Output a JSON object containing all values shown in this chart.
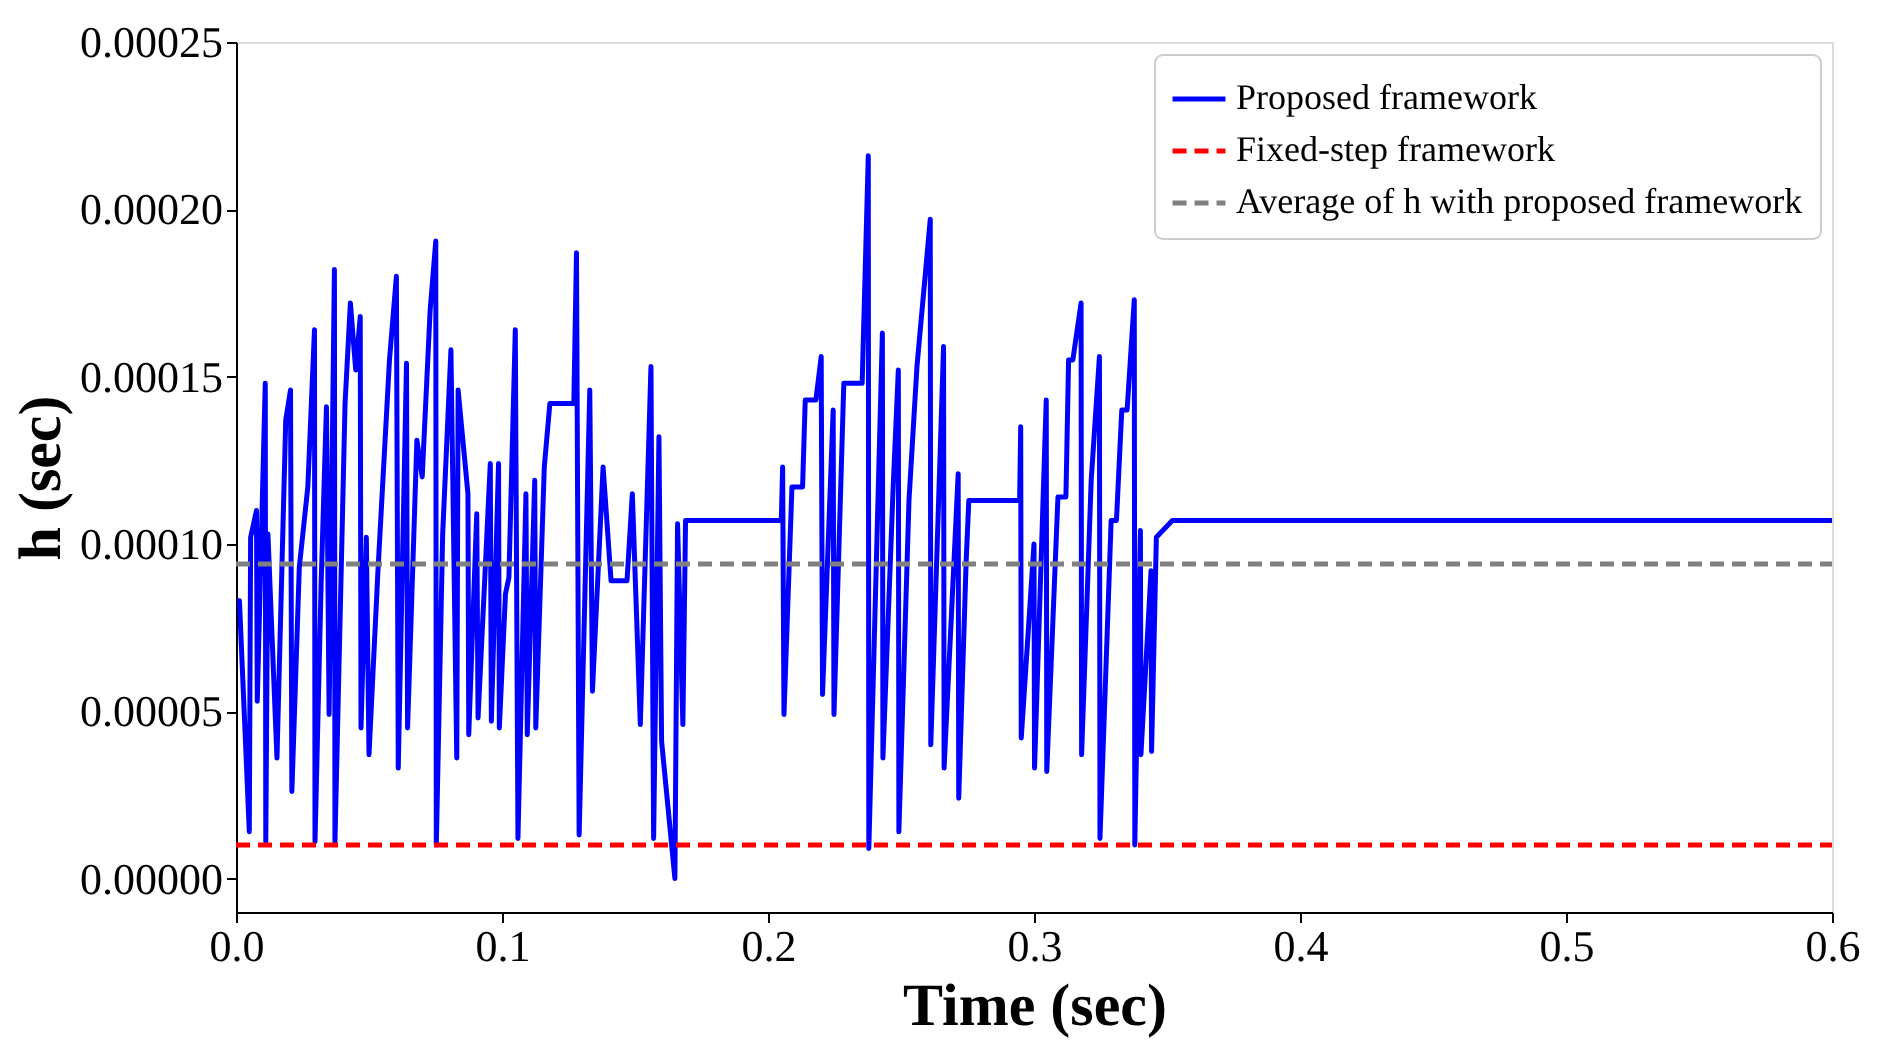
{
  "chart_data": {
    "type": "line",
    "xlabel": "Time (sec)",
    "ylabel": "h (sec)",
    "xlim": [
      0,
      0.6
    ],
    "ylim": [
      -1e-05,
      0.00025
    ],
    "xticks": [
      {
        "value": 0,
        "label": "0.0"
      },
      {
        "value": 0.1,
        "label": "0.1"
      },
      {
        "value": 0.2,
        "label": "0.2"
      },
      {
        "value": 0.3,
        "label": "0.3"
      },
      {
        "value": 0.4,
        "label": "0.4"
      },
      {
        "value": 0.5,
        "label": "0.5"
      },
      {
        "value": 0.6,
        "label": "0.6"
      }
    ],
    "yticks": [
      {
        "value": 0,
        "label": "0.00000"
      },
      {
        "value": 5e-05,
        "label": "0.00005"
      },
      {
        "value": 0.0001,
        "label": "0.00010"
      },
      {
        "value": 0.00015,
        "label": "0.00015"
      },
      {
        "value": 0.0002,
        "label": "0.00020"
      },
      {
        "value": 0.00025,
        "label": "0.00025"
      }
    ],
    "grid": false,
    "legend": "top right",
    "marker": "none",
    "series": [
      {
        "name": "Proposed framework",
        "color": "#0000ff",
        "line_style": "solid",
        "x": [
          0.0005,
          0.0013,
          0.005,
          0.0055,
          0.0077,
          0.008,
          0.011,
          0.0112,
          0.012,
          0.0154,
          0.0187,
          0.0205,
          0.021,
          0.0238,
          0.027,
          0.0295,
          0.0297,
          0.032,
          0.034,
          0.035,
          0.037,
          0.0372,
          0.041,
          0.043,
          0.045,
          0.0467,
          0.047,
          0.049,
          0.05,
          0.0533,
          0.0577,
          0.0603,
          0.061,
          0.0641,
          0.0645,
          0.068,
          0.07,
          0.073,
          0.0751,
          0.0753,
          0.0777,
          0.0808,
          0.083,
          0.0835,
          0.0872,
          0.0875,
          0.0905,
          0.091,
          0.0956,
          0.096,
          0.0987,
          0.099,
          0.1013,
          0.1026,
          0.105,
          0.106,
          0.109,
          0.1095,
          0.1123,
          0.1127,
          0.1159,
          0.118,
          0.127,
          0.128,
          0.129,
          0.133,
          0.134,
          0.138,
          0.141,
          0.147,
          0.149,
          0.152,
          0.156,
          0.157,
          0.159,
          0.16,
          0.165,
          0.166,
          0.168,
          0.169,
          0.205,
          0.2055,
          0.206,
          0.209,
          0.213,
          0.214,
          0.218,
          0.22,
          0.2205,
          0.2245,
          0.2248,
          0.2285,
          0.2354,
          0.2377,
          0.2379,
          0.243,
          0.2432,
          0.247,
          0.249,
          0.2492,
          0.253,
          0.256,
          0.261,
          0.2612,
          0.266,
          0.2662,
          0.2715,
          0.2717,
          0.2745,
          0.2755,
          0.2946,
          0.295,
          0.2952,
          0.3,
          0.3002,
          0.3046,
          0.3048,
          0.309,
          0.312,
          0.313,
          0.3146,
          0.3177,
          0.3179,
          0.3215,
          0.3246,
          0.3248,
          0.329,
          0.331,
          0.333,
          0.335,
          0.3377,
          0.3379,
          0.34,
          0.3402,
          0.344,
          0.3442,
          0.346,
          0.352,
          0.6
        ],
        "values": [
          8.3e-05,
          8.3e-05,
          1.4e-05,
          0.000102,
          0.00011,
          5.3e-05,
          0.000148,
          1.1e-05,
          0.000103,
          3.6e-05,
          0.000137,
          0.000146,
          2.6e-05,
          9.3e-05,
          0.000117,
          0.000164,
          1.1e-05,
          8.8e-05,
          0.000141,
          4.9e-05,
          0.000182,
          1.1e-05,
          0.000142,
          0.000172,
          0.000152,
          0.000168,
          4.5e-05,
          0.000102,
          3.7e-05,
          9.1e-05,
          0.000155,
          0.00018,
          3.3e-05,
          0.000154,
          4.5e-05,
          0.000131,
          0.00012,
          0.00017,
          0.0001905,
          1e-05,
          0.000103,
          0.000158,
          3.6e-05,
          0.000146,
          0.000115,
          4.3e-05,
          0.000109,
          4.8e-05,
          0.000124,
          4.7e-05,
          0.000124,
          4.5e-05,
          8.5e-05,
          9e-05,
          0.000164,
          1.2e-05,
          0.000115,
          4.3e-05,
          0.000119,
          4.5e-05,
          0.000123,
          0.000142,
          0.000142,
          0.000187,
          1.3e-05,
          0.000146,
          5.6e-05,
          0.000123,
          8.9e-05,
          8.9e-05,
          0.000115,
          4.6e-05,
          0.000153,
          1.2e-05,
          0.000132,
          4.1e-05,
          0,
          0.000106,
          4.6e-05,
          0.000107,
          0.000107,
          0.000123,
          4.9e-05,
          0.000117,
          0.000117,
          0.000143,
          0.000143,
          0.000156,
          5.5e-05,
          0.00014,
          4.9e-05,
          0.000148,
          0.000148,
          0.000216,
          9e-06,
          0.000163,
          3.6e-05,
          0.000116,
          0.000152,
          1.4e-05,
          0.000113,
          0.000153,
          0.000197,
          4e-05,
          0.000159,
          3.3e-05,
          0.000121,
          2.4e-05,
          9.5e-05,
          0.000113,
          0.000113,
          0.000135,
          4.2e-05,
          0.0001,
          3.3e-05,
          0.000143,
          3.2e-05,
          0.000114,
          0.000114,
          0.000155,
          0.000155,
          0.000172,
          3.7e-05,
          0.000119,
          0.000156,
          1.2e-05,
          0.000107,
          0.000107,
          0.00014,
          0.00014,
          0.000173,
          1e-05,
          0.000104,
          3.7e-05,
          9.2e-05,
          3.8e-05,
          0.000102,
          0.000107,
          0.000107
        ]
      },
      {
        "name": "Fixed-step framework",
        "color": "#ff0000",
        "line_style": "dashed",
        "x": [
          0,
          0.6
        ],
        "values": [
          1e-05,
          1e-05
        ]
      },
      {
        "name": "Average of h with proposed framework",
        "color": "#808080",
        "line_style": "dashed",
        "x": [
          0,
          0.6
        ],
        "values": [
          9.4e-05,
          9.4e-05
        ]
      }
    ]
  }
}
